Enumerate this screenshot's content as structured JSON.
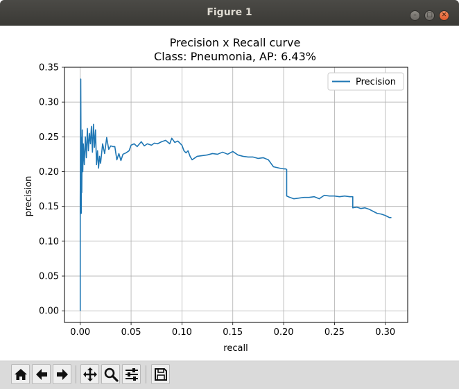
{
  "window": {
    "title": "Figure 1",
    "controls": {
      "minimize": "minimize-icon",
      "maximize": "maximize-icon",
      "close": "close-icon"
    }
  },
  "toolbar": {
    "buttons": [
      {
        "name": "home-button",
        "icon": "home-icon"
      },
      {
        "name": "back-button",
        "icon": "arrow-left-icon"
      },
      {
        "name": "forward-button",
        "icon": "arrow-right-icon"
      },
      {
        "name": "pan-button",
        "icon": "move-icon"
      },
      {
        "name": "zoom-button",
        "icon": "magnifier-icon"
      },
      {
        "name": "configure-subplots-button",
        "icon": "sliders-icon"
      },
      {
        "name": "save-button",
        "icon": "floppy-disk-icon"
      }
    ]
  },
  "chart_data": {
    "type": "line",
    "title": "Precision x Recall curve",
    "subtitle": "Class: Pneumonia, AP: 6.43%",
    "xlabel": "recall",
    "ylabel": "precision",
    "xlim": [
      -0.0155,
      0.322
    ],
    "ylim": [
      -0.0167,
      0.35
    ],
    "xticks": [
      0.0,
      0.05,
      0.1,
      0.15,
      0.2,
      0.25,
      0.3
    ],
    "xtick_labels": [
      "0.00",
      "0.05",
      "0.10",
      "0.15",
      "0.20",
      "0.25",
      "0.30"
    ],
    "yticks": [
      0.0,
      0.05,
      0.1,
      0.15,
      0.2,
      0.25,
      0.3,
      0.35
    ],
    "ytick_labels": [
      "0.00",
      "0.05",
      "0.10",
      "0.15",
      "0.20",
      "0.25",
      "0.30",
      "0.35"
    ],
    "grid": true,
    "legend_position": "top-right",
    "series": [
      {
        "name": "Precision",
        "color": "#1f77b4",
        "x": [
          0.0,
          0.0,
          0.0005,
          0.001,
          0.001,
          0.0015,
          0.002,
          0.0025,
          0.003,
          0.004,
          0.005,
          0.006,
          0.007,
          0.008,
          0.009,
          0.01,
          0.011,
          0.012,
          0.013,
          0.014,
          0.015,
          0.016,
          0.017,
          0.018,
          0.019,
          0.02,
          0.022,
          0.024,
          0.026,
          0.028,
          0.03,
          0.032,
          0.034,
          0.036,
          0.038,
          0.04,
          0.042,
          0.045,
          0.048,
          0.05,
          0.053,
          0.056,
          0.06,
          0.063,
          0.066,
          0.07,
          0.073,
          0.076,
          0.08,
          0.084,
          0.088,
          0.09,
          0.093,
          0.096,
          0.1,
          0.102,
          0.104,
          0.106,
          0.108,
          0.11,
          0.115,
          0.12,
          0.125,
          0.13,
          0.135,
          0.14,
          0.145,
          0.15,
          0.155,
          0.16,
          0.165,
          0.17,
          0.175,
          0.18,
          0.185,
          0.19,
          0.193,
          0.196,
          0.2,
          0.202,
          0.203,
          0.203,
          0.206,
          0.21,
          0.215,
          0.22,
          0.225,
          0.23,
          0.235,
          0.24,
          0.245,
          0.25,
          0.255,
          0.26,
          0.265,
          0.268,
          0.268,
          0.272,
          0.276,
          0.28,
          0.284,
          0.288,
          0.292,
          0.296,
          0.3,
          0.304,
          0.306
        ],
        "y": [
          0.0,
          0.16,
          0.333,
          0.14,
          0.25,
          0.17,
          0.26,
          0.2,
          0.24,
          0.21,
          0.25,
          0.22,
          0.262,
          0.23,
          0.255,
          0.24,
          0.265,
          0.228,
          0.268,
          0.235,
          0.26,
          0.21,
          0.23,
          0.205,
          0.222,
          0.212,
          0.24,
          0.226,
          0.249,
          0.232,
          0.237,
          0.236,
          0.236,
          0.217,
          0.226,
          0.216,
          0.225,
          0.227,
          0.23,
          0.238,
          0.24,
          0.236,
          0.243,
          0.237,
          0.24,
          0.238,
          0.241,
          0.24,
          0.243,
          0.245,
          0.24,
          0.248,
          0.242,
          0.244,
          0.238,
          0.23,
          0.227,
          0.23,
          0.222,
          0.217,
          0.222,
          0.223,
          0.224,
          0.226,
          0.225,
          0.228,
          0.225,
          0.229,
          0.224,
          0.222,
          0.221,
          0.221,
          0.219,
          0.22,
          0.217,
          0.207,
          0.206,
          0.205,
          0.204,
          0.204,
          0.203,
          0.165,
          0.163,
          0.161,
          0.162,
          0.163,
          0.163,
          0.164,
          0.161,
          0.166,
          0.165,
          0.165,
          0.164,
          0.165,
          0.164,
          0.164,
          0.148,
          0.149,
          0.147,
          0.148,
          0.146,
          0.143,
          0.14,
          0.139,
          0.137,
          0.134,
          0.134
        ]
      }
    ]
  }
}
